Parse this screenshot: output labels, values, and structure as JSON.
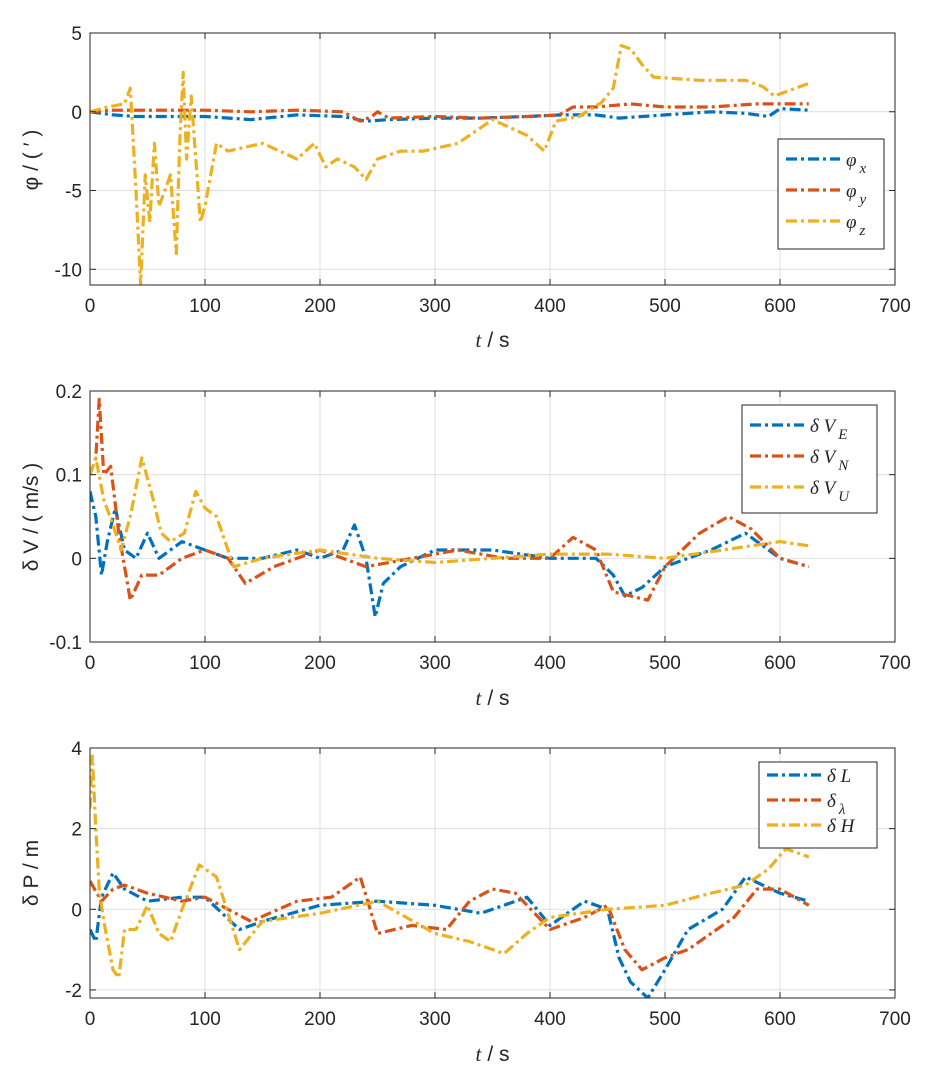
{
  "chart_data": [
    {
      "type": "line",
      "xlabel_var": "t",
      "xlabel_unit": "/ s",
      "ylabel": "φ / ( ′ )",
      "xlim": [
        0,
        700
      ],
      "ylim": [
        -11,
        5
      ],
      "xticks": [
        0,
        100,
        200,
        300,
        400,
        500,
        600,
        700
      ],
      "yticks": [
        5,
        0,
        -5,
        -10
      ],
      "grid": true,
      "legend_position": "right",
      "series": [
        {
          "name": "φx",
          "legend_main": "φ",
          "legend_sub": "x",
          "color": "#0072BD",
          "x": [
            0,
            20,
            40,
            60,
            100,
            140,
            180,
            220,
            240,
            260,
            300,
            340,
            380,
            410,
            440,
            460,
            500,
            540,
            570,
            590,
            600,
            625
          ],
          "y": [
            0,
            -0.2,
            -0.3,
            -0.3,
            -0.3,
            -0.5,
            -0.2,
            -0.3,
            -0.6,
            -0.5,
            -0.4,
            -0.4,
            -0.3,
            -0.2,
            -0.2,
            -0.4,
            -0.2,
            0,
            -0.1,
            -0.3,
            0.2,
            0.1
          ]
        },
        {
          "name": "φy",
          "legend_main": "φ",
          "legend_sub": "y",
          "color": "#D95319",
          "x": [
            0,
            20,
            40,
            60,
            100,
            140,
            180,
            220,
            235,
            245,
            250,
            260,
            300,
            340,
            380,
            408,
            420,
            440,
            470,
            500,
            540,
            580,
            600,
            625
          ],
          "y": [
            0,
            0.1,
            0.1,
            0.1,
            0.1,
            0,
            0.1,
            0,
            -0.6,
            -0.3,
            0,
            -0.4,
            -0.3,
            -0.4,
            -0.3,
            -0.2,
            0.3,
            0.3,
            0.5,
            0.3,
            0.3,
            0.5,
            0.5,
            0.5
          ]
        },
        {
          "name": "φz",
          "legend_main": "φ",
          "legend_sub": "z",
          "color": "#EDB120",
          "x": [
            0,
            15,
            30,
            35,
            40,
            44,
            48,
            52,
            56,
            60,
            65,
            70,
            75,
            78,
            81,
            84,
            88,
            92,
            96,
            100,
            110,
            120,
            150,
            180,
            195,
            205,
            215,
            230,
            240,
            250,
            270,
            290,
            320,
            350,
            380,
            395,
            405,
            425,
            445,
            455,
            462,
            470,
            480,
            490,
            530,
            570,
            585,
            595,
            625
          ],
          "y": [
            0,
            0.3,
            0.5,
            1.5,
            -5,
            -11,
            -4,
            -7,
            -2,
            -6,
            -5,
            -4,
            -9,
            -2,
            2.5,
            -3,
            1,
            -3,
            -7,
            -6,
            -2,
            -2.5,
            -2,
            -3,
            -2,
            -3.5,
            -3,
            -3.5,
            -4.3,
            -3,
            -2.5,
            -2.5,
            -2,
            -0.5,
            -1.5,
            -2.5,
            -0.6,
            -0.3,
            0.6,
            1.5,
            4.2,
            4,
            3,
            2.2,
            2,
            2,
            1.6,
            1.0,
            1.8
          ]
        }
      ]
    },
    {
      "type": "line",
      "xlabel_var": "t",
      "xlabel_unit": "/ s",
      "ylabel": "δ V / ( m/s )",
      "xlim": [
        0,
        700
      ],
      "ylim": [
        -0.1,
        0.2
      ],
      "xticks": [
        0,
        100,
        200,
        300,
        400,
        500,
        600,
        700
      ],
      "yticks": [
        0.2,
        0.1,
        0,
        -0.1
      ],
      "ytick_labels": [
        "0.2",
        "0.1",
        "0",
        "-0.1"
      ],
      "grid": true,
      "legend_position": "right",
      "series": [
        {
          "name": "δVE",
          "legend_main": "δ V",
          "legend_sub": "E",
          "color": "#0072BD",
          "x": [
            0,
            5,
            10,
            15,
            22,
            30,
            40,
            50,
            60,
            80,
            100,
            120,
            150,
            180,
            200,
            220,
            230,
            240,
            248,
            255,
            270,
            300,
            350,
            400,
            440,
            455,
            465,
            480,
            500,
            540,
            570,
            600,
            625
          ],
          "y": [
            0.08,
            0.05,
            -0.02,
            0.02,
            0.06,
            0.01,
            0,
            0.03,
            0,
            0.02,
            0.01,
            0,
            0,
            0.01,
            0,
            0.01,
            0.04,
            0,
            -0.07,
            -0.03,
            -0.01,
            0.01,
            0.01,
            0,
            0,
            -0.02,
            -0.045,
            -0.035,
            -0.01,
            0.01,
            0.03,
            0,
            -0.01
          ]
        },
        {
          "name": "δVN",
          "legend_main": "δ V",
          "legend_sub": "N",
          "color": "#D95319",
          "x": [
            0,
            5,
            8,
            12,
            18,
            25,
            35,
            45,
            60,
            80,
            100,
            120,
            135,
            160,
            200,
            240,
            280,
            320,
            360,
            400,
            420,
            440,
            455,
            470,
            485,
            500,
            530,
            555,
            575,
            600,
            625
          ],
          "y": [
            0.1,
            0.12,
            0.19,
            0.1,
            0.11,
            0.03,
            -0.05,
            -0.02,
            -0.02,
            0,
            0.01,
            0,
            -0.03,
            -0.01,
            0.01,
            -0.01,
            0,
            0.01,
            0,
            0,
            0.025,
            0.01,
            -0.04,
            -0.045,
            -0.05,
            -0.01,
            0.03,
            0.05,
            0.035,
            0,
            -0.01
          ]
        },
        {
          "name": "δVU",
          "legend_main": "δ V",
          "legend_sub": "U",
          "color": "#EDB120",
          "x": [
            0,
            5,
            12,
            20,
            27,
            35,
            45,
            55,
            62,
            70,
            82,
            92,
            100,
            110,
            125,
            150,
            200,
            250,
            300,
            350,
            400,
            450,
            500,
            550,
            600,
            625
          ],
          "y": [
            0.1,
            0.12,
            0.07,
            0.04,
            0.01,
            0.05,
            0.12,
            0.07,
            0.03,
            0.02,
            0.03,
            0.08,
            0.06,
            0.05,
            -0.01,
            0,
            0.01,
            0,
            -0.005,
            0,
            0.005,
            0.005,
            0,
            0.01,
            0.02,
            0.015
          ]
        }
      ]
    },
    {
      "type": "line",
      "xlabel_var": "t",
      "xlabel_unit": "/ s",
      "ylabel": "δ P / m",
      "xlim": [
        0,
        700
      ],
      "ylim": [
        -2.2,
        4
      ],
      "xticks": [
        0,
        100,
        200,
        300,
        400,
        500,
        600,
        700
      ],
      "yticks": [
        4,
        2,
        0,
        -2
      ],
      "grid": true,
      "legend_position": "top-right",
      "series": [
        {
          "name": "δL",
          "legend_main": "δ L",
          "legend_sub": "",
          "color": "#0072BD",
          "x": [
            0,
            5,
            10,
            20,
            30,
            50,
            80,
            100,
            130,
            150,
            200,
            250,
            300,
            340,
            380,
            400,
            430,
            450,
            460,
            470,
            485,
            500,
            520,
            550,
            570,
            600,
            625
          ],
          "y": [
            -0.5,
            -0.8,
            0.3,
            0.9,
            0.5,
            0.2,
            0.3,
            0.3,
            -0.5,
            -0.3,
            0.1,
            0.2,
            0.1,
            -0.1,
            0.3,
            -0.4,
            0.2,
            0,
            -1.2,
            -1.8,
            -2.2,
            -1.5,
            -0.5,
            0,
            0.8,
            0.4,
            0.2
          ]
        },
        {
          "name": "δλ",
          "legend_main": "δ",
          "legend_sub": "λ",
          "color": "#D95319",
          "x": [
            0,
            10,
            20,
            30,
            50,
            80,
            100,
            140,
            180,
            210,
            235,
            250,
            280,
            310,
            330,
            350,
            370,
            400,
            430,
            450,
            465,
            480,
            500,
            520,
            560,
            580,
            600,
            625
          ],
          "y": [
            0.7,
            0.2,
            0.5,
            0.6,
            0.4,
            0.2,
            0.3,
            -0.3,
            0.2,
            0.3,
            0.8,
            -0.6,
            -0.4,
            -0.5,
            0.2,
            0.5,
            0.4,
            -0.5,
            -0.2,
            0.1,
            -1,
            -1.5,
            -1.2,
            -1,
            -0.2,
            0.5,
            0.5,
            0.1
          ]
        },
        {
          "name": "δH",
          "legend_main": "δ H",
          "legend_sub": "",
          "color": "#EDB120",
          "x": [
            0,
            2,
            5,
            8,
            12,
            20,
            25,
            30,
            40,
            50,
            60,
            70,
            80,
            95,
            110,
            130,
            150,
            200,
            250,
            300,
            330,
            360,
            380,
            400,
            450,
            500,
            540,
            570,
            590,
            605,
            625
          ],
          "y": [
            2.5,
            3.8,
            2,
            0.5,
            -0.3,
            -1.5,
            -1.7,
            -0.5,
            -0.5,
            0.1,
            -0.6,
            -0.8,
            0,
            1.1,
            0.8,
            -1,
            -0.3,
            -0.1,
            0.2,
            -0.6,
            -0.8,
            -1.1,
            -0.6,
            -0.2,
            0,
            0.1,
            0.4,
            0.6,
            1,
            1.5,
            1.3
          ]
        }
      ]
    }
  ]
}
